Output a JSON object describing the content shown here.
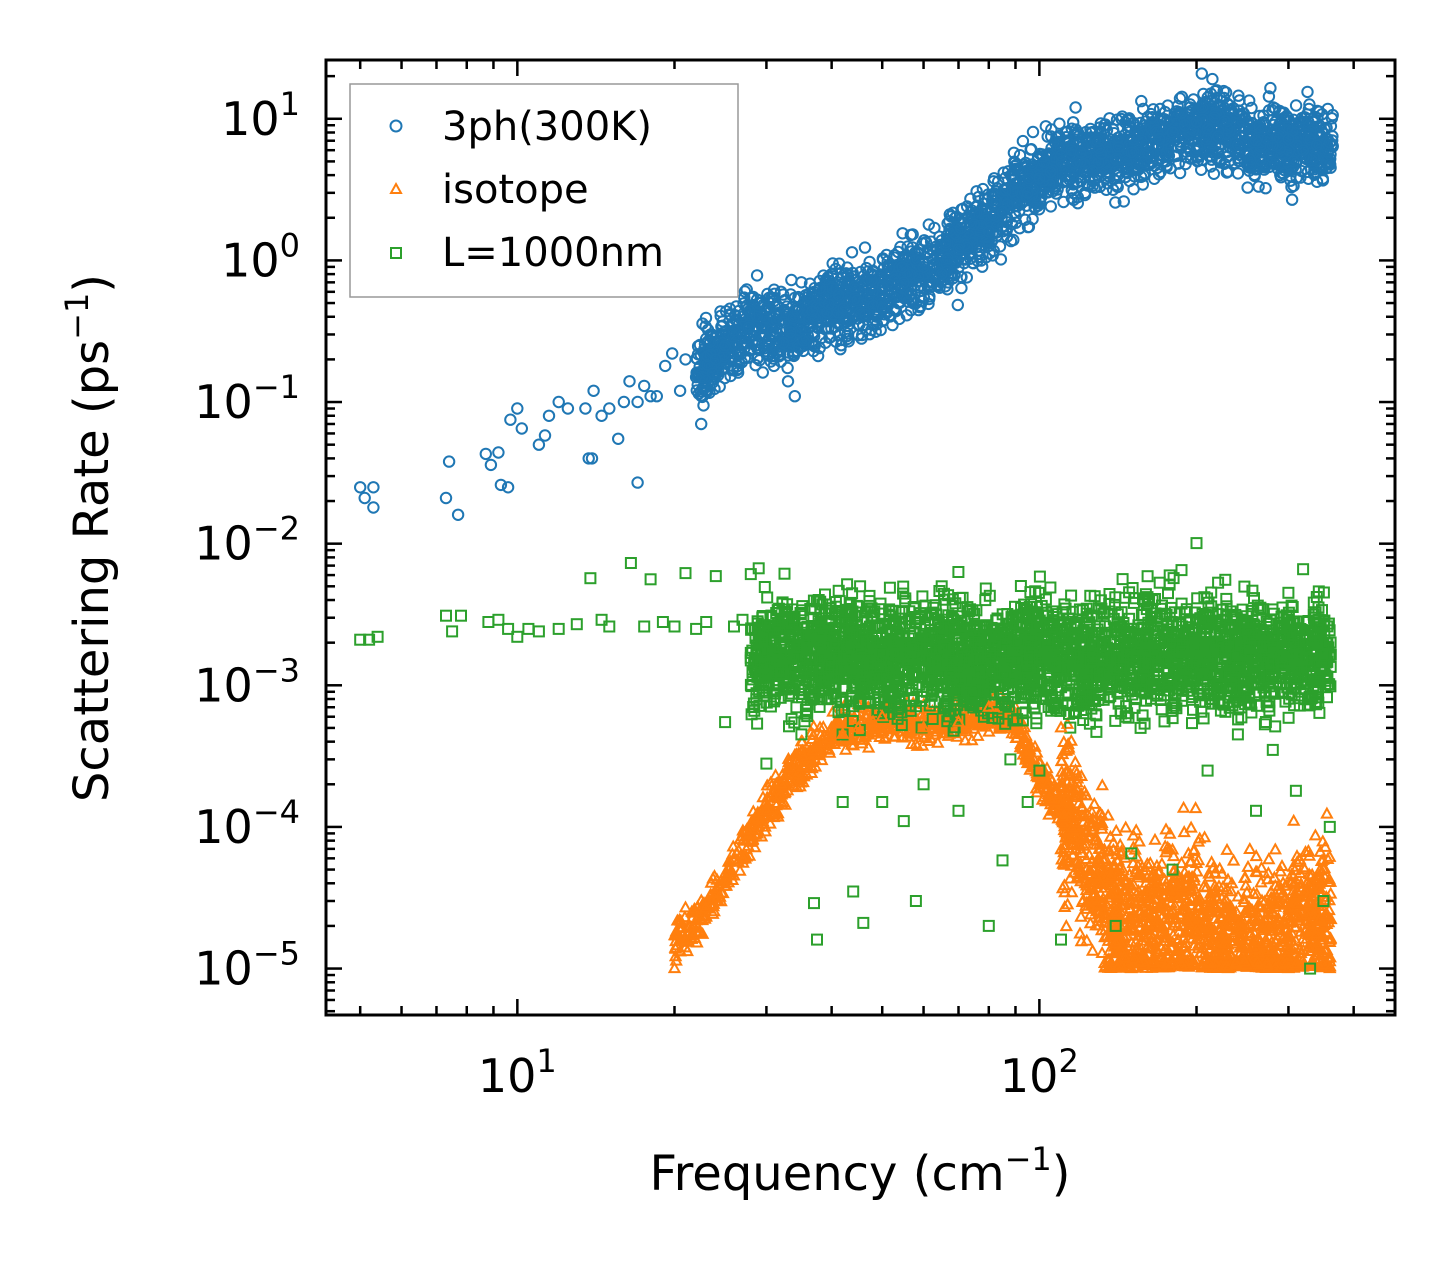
{
  "chart_data": {
    "type": "scatter",
    "title": "",
    "xlabel": "Frequency (cm",
    "xlabel_sup": "−1",
    "xlabel_end": ")",
    "ylabel": "Scattering Rate (ps",
    "ylabel_sup": "−1",
    "ylabel_end": ")",
    "xscale": "log",
    "yscale": "log",
    "xlim": [
      4.3,
      480
    ],
    "ylim": [
      4.7e-06,
      26
    ],
    "x_ticks": [
      {
        "value": 10,
        "base": "10",
        "exp": "1"
      },
      {
        "value": 100,
        "base": "10",
        "exp": "2"
      }
    ],
    "y_ticks": [
      {
        "value": 10,
        "base": "10",
        "exp": "1"
      },
      {
        "value": 1,
        "base": "10",
        "exp": "0"
      },
      {
        "value": 0.1,
        "base": "10",
        "exp": "−1"
      },
      {
        "value": 0.01,
        "base": "10",
        "exp": "−2"
      },
      {
        "value": 0.001,
        "base": "10",
        "exp": "−3"
      },
      {
        "value": 0.0001,
        "base": "10",
        "exp": "−4"
      },
      {
        "value": 1e-05,
        "base": "10",
        "exp": "−5"
      }
    ],
    "grid": false,
    "legend_position": "top-left",
    "series": [
      {
        "name": "3ph(300K)",
        "marker": "circle",
        "color": "#1f77b4",
        "points": [
          [
            5.0,
            0.025
          ],
          [
            5.1,
            0.021
          ],
          [
            5.3,
            0.025
          ],
          [
            5.3,
            0.018
          ],
          [
            7.3,
            0.021
          ],
          [
            7.4,
            0.038
          ],
          [
            7.7,
            0.016
          ],
          [
            8.7,
            0.043
          ],
          [
            8.9,
            0.036
          ],
          [
            9.2,
            0.044
          ],
          [
            9.3,
            0.026
          ],
          [
            9.6,
            0.025
          ],
          [
            9.7,
            0.075
          ],
          [
            10.0,
            0.09
          ],
          [
            10.2,
            0.065
          ],
          [
            11.0,
            0.05
          ],
          [
            11.3,
            0.058
          ],
          [
            11.5,
            0.08
          ],
          [
            12.0,
            0.1
          ],
          [
            12.5,
            0.09
          ],
          [
            13.5,
            0.09
          ],
          [
            13.7,
            0.04
          ],
          [
            13.9,
            0.04
          ],
          [
            14.0,
            0.12
          ],
          [
            14.5,
            0.08
          ],
          [
            15.0,
            0.09
          ],
          [
            15.6,
            0.055
          ],
          [
            16.0,
            0.1
          ],
          [
            16.4,
            0.14
          ],
          [
            17.0,
            0.027
          ],
          [
            17.0,
            0.1
          ],
          [
            17.5,
            0.13
          ],
          [
            18.0,
            0.11
          ],
          [
            18.5,
            0.11
          ],
          [
            19.2,
            0.18
          ],
          [
            19.8,
            0.22
          ],
          [
            20.5,
            0.12
          ],
          [
            21.0,
            0.2
          ],
          [
            22.0,
            0.15
          ],
          [
            22.5,
            0.07
          ],
          [
            23.0,
            0.28
          ],
          [
            24.0,
            0.2
          ],
          [
            25.0,
            0.25
          ],
          [
            26.0,
            0.32
          ],
          [
            27.0,
            0.4
          ],
          [
            28.0,
            0.3
          ],
          [
            29.0,
            0.5
          ],
          [
            30.0,
            0.45
          ],
          [
            32.0,
            0.6
          ],
          [
            33.0,
            0.14
          ],
          [
            34.0,
            0.11
          ],
          [
            35.0,
            0.7
          ],
          [
            36.0,
            0.55
          ],
          [
            40.0,
            0.8
          ],
          [
            45.0,
            0.35
          ],
          [
            50.0,
            0.65
          ],
          [
            55.0,
            0.7
          ],
          [
            60.0,
            0.9
          ],
          [
            65.0,
            0.8
          ],
          [
            70.0,
            1.2
          ],
          [
            75.0,
            1.8
          ],
          [
            80.0,
            1.6
          ],
          [
            85.0,
            2.2
          ],
          [
            90.0,
            3.5
          ],
          [
            95.0,
            3.0
          ],
          [
            100.0,
            3.8
          ],
          [
            105.0,
            4.2
          ],
          [
            110.0,
            5.5
          ],
          [
            115.0,
            6.0
          ],
          [
            120.0,
            5.8
          ],
          [
            130.0,
            6.2
          ],
          [
            140.0,
            5.2
          ],
          [
            150.0,
            5.8
          ],
          [
            160.0,
            6.5
          ],
          [
            170.0,
            7.2
          ],
          [
            180.0,
            8.0
          ],
          [
            190.0,
            9.0
          ],
          [
            200.0,
            9.5
          ],
          [
            205.0,
            12.0
          ],
          [
            210.0,
            8.5
          ],
          [
            220.0,
            7.5
          ],
          [
            240.0,
            6.5
          ],
          [
            260.0,
            7.0
          ],
          [
            280.0,
            6.5
          ],
          [
            300.0,
            7.2
          ],
          [
            320.0,
            6.0
          ],
          [
            340.0,
            6.5
          ],
          [
            360.0,
            6.8
          ]
        ]
      },
      {
        "name": "isotope",
        "marker": "triangle",
        "color": "#ff7f0e",
        "points": [
          [
            20.0,
            1e-05
          ],
          [
            21.0,
            1.4e-05
          ],
          [
            22.0,
            1.8e-05
          ],
          [
            23.0,
            2.3e-05
          ],
          [
            24.0,
            3e-05
          ],
          [
            25.0,
            3.8e-05
          ],
          [
            26.0,
            4.5e-05
          ],
          [
            27.0,
            6e-05
          ],
          [
            28.0,
            8e-05
          ],
          [
            29.0,
            0.0001
          ],
          [
            30.0,
            0.00013
          ],
          [
            31.0,
            0.00016
          ],
          [
            32.0,
            0.0002
          ],
          [
            33.0,
            0.00026
          ],
          [
            34.0,
            0.00032
          ],
          [
            35.0,
            0.0004
          ],
          [
            38.0,
            0.0005
          ],
          [
            42.0,
            0.00045
          ],
          [
            45.0,
            0.0005
          ],
          [
            48.0,
            0.00055
          ],
          [
            50.0,
            0.0006
          ],
          [
            60.0,
            0.0005
          ],
          [
            70.0,
            0.00055
          ],
          [
            80.0,
            0.0007
          ],
          [
            110.0,
            0.0005
          ],
          [
            115.0,
            0.0002
          ],
          [
            120.0,
            8e-05
          ],
          [
            125.0,
            3e-05
          ],
          [
            130.0,
            2e-05
          ],
          [
            140.0,
            1.5e-05
          ],
          [
            150.0,
            1e-05
          ],
          [
            160.0,
            4e-05
          ],
          [
            180.0,
            2e-05
          ],
          [
            200.0,
            3e-05
          ],
          [
            230.0,
            1e-05
          ],
          [
            260.0,
            2e-05
          ],
          [
            300.0,
            1e-05
          ],
          [
            330.0,
            3e-05
          ],
          [
            350.0,
            5e-05
          ],
          [
            360.0,
            1e-05
          ]
        ]
      },
      {
        "name": "L=1000nm",
        "marker": "square",
        "color": "#2ca02c",
        "points": [
          [
            5.0,
            0.0021
          ],
          [
            5.2,
            0.0021
          ],
          [
            5.4,
            0.0022
          ],
          [
            7.3,
            0.0031
          ],
          [
            7.5,
            0.0024
          ],
          [
            7.8,
            0.0031
          ],
          [
            8.8,
            0.0028
          ],
          [
            9.2,
            0.0029
          ],
          [
            9.6,
            0.0025
          ],
          [
            10.0,
            0.0022
          ],
          [
            10.5,
            0.0025
          ],
          [
            11.0,
            0.0024
          ],
          [
            12.0,
            0.0025
          ],
          [
            13.0,
            0.0027
          ],
          [
            13.8,
            0.0057
          ],
          [
            14.5,
            0.0029
          ],
          [
            15.0,
            0.0026
          ],
          [
            16.5,
            0.0073
          ],
          [
            17.5,
            0.0026
          ],
          [
            18.0,
            0.0056
          ],
          [
            19.0,
            0.0028
          ],
          [
            20.0,
            0.0026
          ],
          [
            21.0,
            0.0062
          ],
          [
            22.0,
            0.0025
          ],
          [
            23.0,
            0.0028
          ],
          [
            24.0,
            0.0059
          ],
          [
            25.0,
            0.00055
          ],
          [
            26.0,
            0.0026
          ],
          [
            27.0,
            0.0029
          ],
          [
            28.0,
            0.0061
          ],
          [
            29.0,
            0.0067
          ],
          [
            30.0,
            0.00028
          ],
          [
            32.0,
            0.0012
          ],
          [
            35.0,
            0.00045
          ],
          [
            37.0,
            2.9e-05
          ],
          [
            37.5,
            1.6e-05
          ],
          [
            40.0,
            0.0014
          ],
          [
            42.0,
            0.00015
          ],
          [
            44.0,
            3.5e-05
          ],
          [
            46.0,
            2.1e-05
          ],
          [
            50.0,
            0.00015
          ],
          [
            55.0,
            0.00011
          ],
          [
            58.0,
            3e-05
          ],
          [
            60.0,
            0.0002
          ],
          [
            65.0,
            0.005
          ],
          [
            70.0,
            0.00013
          ],
          [
            75.0,
            0.0032
          ],
          [
            80.0,
            2e-05
          ],
          [
            85.0,
            5.8e-05
          ],
          [
            88.0,
            0.0003
          ],
          [
            95.0,
            0.00015
          ],
          [
            100.0,
            0.00025
          ],
          [
            105.0,
            0.0049
          ],
          [
            110.0,
            1.6e-05
          ],
          [
            120.0,
            0.0008
          ],
          [
            130.0,
            0.0035
          ],
          [
            140.0,
            2e-05
          ],
          [
            150.0,
            6.5e-05
          ],
          [
            160.0,
            0.0044
          ],
          [
            170.0,
            0.0053
          ],
          [
            180.0,
            5e-05
          ],
          [
            190.0,
            0.0011
          ],
          [
            200.0,
            0.0101
          ],
          [
            210.0,
            0.00025
          ],
          [
            220.0,
            0.0053
          ],
          [
            240.0,
            0.00045
          ],
          [
            260.0,
            0.00013
          ],
          [
            280.0,
            0.00035
          ],
          [
            300.0,
            0.0045
          ],
          [
            310.0,
            0.00018
          ],
          [
            320.0,
            0.0066
          ],
          [
            330.0,
            1e-05
          ],
          [
            340.0,
            0.0042
          ],
          [
            350.0,
            3e-05
          ],
          [
            360.0,
            0.0001
          ]
        ]
      }
    ]
  }
}
